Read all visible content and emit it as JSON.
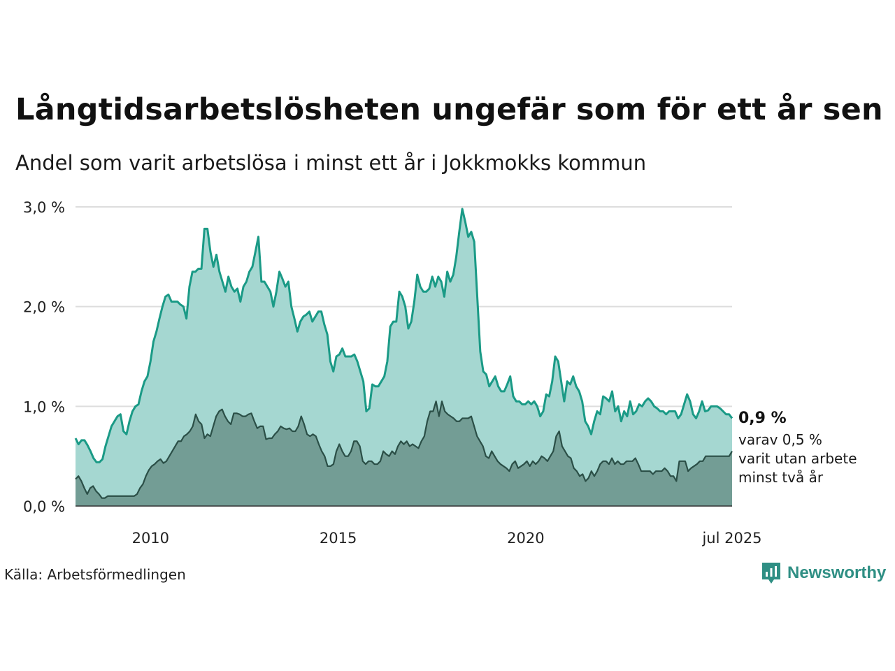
{
  "header": {
    "title": "Långtidsarbetslösheten ungefär som för ett år sen",
    "subtitle": "Andel som varit arbetslösa i minst ett år i Jokkmokks kommun"
  },
  "footer": {
    "source": "Källa: Arbetsförmedlingen",
    "logo_text": "Newsworthy"
  },
  "annotation": {
    "value": "0,9 %",
    "line1": "varav 0,5 %",
    "line2": "varit utan arbete",
    "line3": "minst två år"
  },
  "colors": {
    "series1_line": "#1a9a86",
    "series1_fill": "#a5d7d1",
    "series2_line": "#2b4f47",
    "series2_fill": "#739d95",
    "grid": "#dddddd",
    "logo": "#2f8f84"
  },
  "chart_data": {
    "type": "area",
    "x_start": "2008-01",
    "x_end": "2025-07",
    "frequency": "monthly",
    "ylim": [
      0,
      3.0
    ],
    "y_ticks": [
      0,
      1,
      2,
      3
    ],
    "y_tick_labels": [
      "0,0 %",
      "1,0 %",
      "2,0 %",
      "3,0 %"
    ],
    "x_ticks": [
      "2010-01",
      "2015-01",
      "2020-01",
      "2025-07"
    ],
    "x_tick_labels": [
      "2010",
      "2015",
      "2020",
      "jul 2025"
    ],
    "grid": true,
    "series": [
      {
        "values": [
          0.68,
          0.62,
          0.66,
          0.66,
          0.61,
          0.55,
          0.48,
          0.44,
          0.44,
          0.47,
          0.6,
          0.7,
          0.8,
          0.85,
          0.9,
          0.92,
          0.75,
          0.72,
          0.85,
          0.95,
          1.0,
          1.02,
          1.15,
          1.25,
          1.3,
          1.45,
          1.65,
          1.75,
          1.88,
          2.0,
          2.1,
          2.12,
          2.05,
          2.05,
          2.05,
          2.02,
          2.0,
          1.88,
          2.2,
          2.35,
          2.35,
          2.38,
          2.38,
          2.78,
          2.78,
          2.55,
          2.4,
          2.52,
          2.35,
          2.25,
          2.15,
          2.3,
          2.2,
          2.15,
          2.18,
          2.05,
          2.2,
          2.25,
          2.35,
          2.4,
          2.55,
          2.7,
          2.25,
          2.25,
          2.2,
          2.15,
          2.0,
          2.15,
          2.35,
          2.28,
          2.2,
          2.25,
          2.0,
          1.88,
          1.75,
          1.85,
          1.9,
          1.92,
          1.95,
          1.85,
          1.9,
          1.95,
          1.95,
          1.82,
          1.72,
          1.45,
          1.35,
          1.5,
          1.52,
          1.58,
          1.5,
          1.5,
          1.5,
          1.52,
          1.45,
          1.35,
          1.25,
          0.95,
          0.98,
          1.22,
          1.2,
          1.2,
          1.25,
          1.3,
          1.45,
          1.8,
          1.85,
          1.85,
          2.15,
          2.1,
          2.0,
          1.78,
          1.85,
          2.05,
          2.32,
          2.2,
          2.15,
          2.15,
          2.18,
          2.3,
          2.2,
          2.3,
          2.25,
          2.1,
          2.35,
          2.25,
          2.32,
          2.5,
          2.75,
          2.98,
          2.85,
          2.7,
          2.75,
          2.65,
          2.1,
          1.55,
          1.35,
          1.32,
          1.2,
          1.25,
          1.3,
          1.2,
          1.15,
          1.15,
          1.22,
          1.3,
          1.1,
          1.05,
          1.05,
          1.02,
          1.02,
          1.05,
          1.02,
          1.05,
          1.0,
          0.9,
          0.95,
          1.12,
          1.1,
          1.25,
          1.5,
          1.45,
          1.25,
          1.05,
          1.25,
          1.22,
          1.3,
          1.2,
          1.15,
          1.05,
          0.85,
          0.8,
          0.72,
          0.85,
          0.95,
          0.92,
          1.1,
          1.08,
          1.05,
          1.15,
          0.95,
          1.0,
          0.85,
          0.95,
          0.9,
          1.05,
          0.92,
          0.95,
          1.02,
          1.0,
          1.05,
          1.08,
          1.05,
          1.0,
          0.98,
          0.95,
          0.95,
          0.92,
          0.95,
          0.95,
          0.95,
          0.88,
          0.92,
          1.02,
          1.12,
          1.05,
          0.92,
          0.88,
          0.95,
          1.05,
          0.95,
          0.96,
          1.0,
          1.0,
          1.0,
          0.98,
          0.95,
          0.92,
          0.92,
          0.88
        ]
      },
      {
        "values": [
          0.27,
          0.3,
          0.25,
          0.18,
          0.12,
          0.18,
          0.2,
          0.15,
          0.12,
          0.08,
          0.08,
          0.1,
          0.1,
          0.1,
          0.1,
          0.1,
          0.1,
          0.1,
          0.1,
          0.1,
          0.1,
          0.12,
          0.18,
          0.22,
          0.3,
          0.36,
          0.4,
          0.42,
          0.45,
          0.47,
          0.43,
          0.45,
          0.5,
          0.55,
          0.6,
          0.65,
          0.65,
          0.7,
          0.72,
          0.75,
          0.8,
          0.92,
          0.85,
          0.82,
          0.68,
          0.72,
          0.7,
          0.8,
          0.9,
          0.95,
          0.97,
          0.9,
          0.85,
          0.82,
          0.93,
          0.93,
          0.92,
          0.9,
          0.9,
          0.92,
          0.93,
          0.85,
          0.78,
          0.8,
          0.8,
          0.67,
          0.68,
          0.68,
          0.72,
          0.75,
          0.8,
          0.78,
          0.77,
          0.78,
          0.75,
          0.75,
          0.8,
          0.9,
          0.82,
          0.72,
          0.7,
          0.72,
          0.7,
          0.62,
          0.55,
          0.5,
          0.4,
          0.4,
          0.42,
          0.55,
          0.62,
          0.55,
          0.5,
          0.5,
          0.55,
          0.65,
          0.65,
          0.6,
          0.45,
          0.42,
          0.45,
          0.45,
          0.42,
          0.42,
          0.45,
          0.55,
          0.52,
          0.5,
          0.55,
          0.52,
          0.6,
          0.65,
          0.62,
          0.65,
          0.6,
          0.62,
          0.6,
          0.58,
          0.65,
          0.7,
          0.85,
          0.95,
          0.95,
          1.05,
          0.9,
          1.05,
          0.95,
          0.92,
          0.9,
          0.88,
          0.85,
          0.85,
          0.88,
          0.88,
          0.88,
          0.9,
          0.8,
          0.7,
          0.65,
          0.6,
          0.5,
          0.48,
          0.55,
          0.5,
          0.45,
          0.42,
          0.4,
          0.38,
          0.35,
          0.42,
          0.45,
          0.38,
          0.4,
          0.42,
          0.45,
          0.4,
          0.45,
          0.42,
          0.45,
          0.5,
          0.48,
          0.45,
          0.5,
          0.55,
          0.7,
          0.75,
          0.6,
          0.55,
          0.5,
          0.48,
          0.38,
          0.35,
          0.3,
          0.32,
          0.25,
          0.28,
          0.35,
          0.3,
          0.35,
          0.42,
          0.45,
          0.45,
          0.42,
          0.48,
          0.42,
          0.45,
          0.42,
          0.42,
          0.45,
          0.45,
          0.45,
          0.48,
          0.42,
          0.35,
          0.35,
          0.35,
          0.35,
          0.32,
          0.35,
          0.35,
          0.35,
          0.38,
          0.35,
          0.3,
          0.3,
          0.25,
          0.45,
          0.45,
          0.45,
          0.35,
          0.38,
          0.4,
          0.42,
          0.45,
          0.45,
          0.5,
          0.5,
          0.5,
          0.5,
          0.5,
          0.5,
          0.5,
          0.5,
          0.5,
          0.55
        ]
      }
    ]
  }
}
